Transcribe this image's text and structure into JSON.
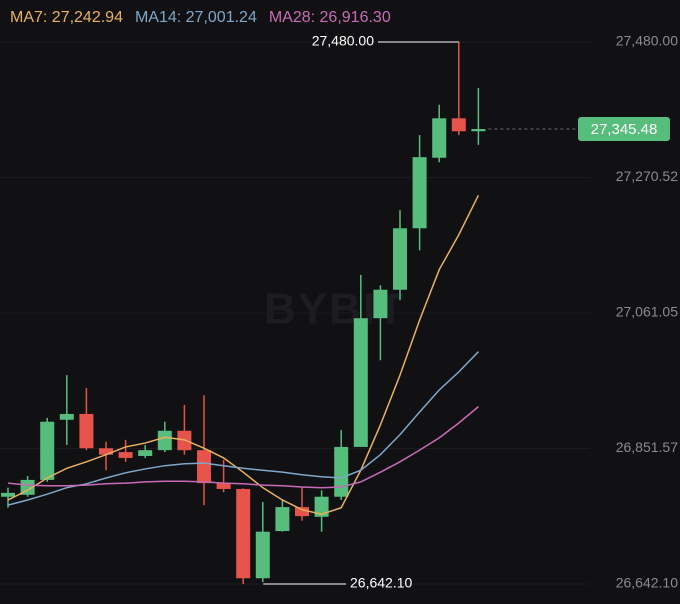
{
  "chart_data": {
    "type": "candlestick",
    "watermark": "BYBIT",
    "ylim": [
      26611.2,
      27544.9
    ],
    "yticks": [
      {
        "value": 27480.0,
        "label": "27,480.00"
      },
      {
        "value": 27270.52,
        "label": "27,270.52"
      },
      {
        "value": 27061.05,
        "label": "27,061.05"
      },
      {
        "value": 26851.57,
        "label": "26,851.57"
      },
      {
        "value": 26642.1,
        "label": "26,642.10"
      }
    ],
    "grid": true,
    "up_color": "#56bd7d",
    "down_color": "#e5534b",
    "open": [
      26777,
      26780,
      26803,
      26896,
      26905,
      26852,
      26846,
      26840,
      26849,
      26879,
      26849,
      26798,
      26789,
      26651,
      26724,
      26761,
      26746,
      26777,
      26854,
      27053,
      27097,
      27192,
      27301,
      27362,
      27342
    ],
    "high": [
      26791,
      26809,
      26899,
      26965,
      26945,
      26862,
      26865,
      26857,
      26893,
      26919,
      26934,
      26834,
      26790,
      26769,
      26772,
      26792,
      26787,
      26880,
      27120,
      27104,
      27220,
      27336,
      27383,
      27480.0,
      27409
    ],
    "low": [
      26760,
      26777,
      26800,
      26857,
      26849,
      26818,
      26831,
      26837,
      26846,
      26842,
      26764,
      26784,
      26642.1,
      26645,
      26723,
      26740,
      26723,
      26772,
      26854,
      26988,
      27081,
      27158,
      27294,
      27336,
      27321
    ],
    "close": [
      26783,
      26803,
      26893,
      26905,
      26852,
      26842,
      26837,
      26849,
      26879,
      26849,
      26798,
      26789,
      26651,
      26723,
      26761,
      26747,
      26777,
      26854,
      27053,
      27097,
      27192,
      27302,
      27362,
      27342,
      27345.48
    ],
    "series": [
      {
        "name": "MA7: 27,242.94",
        "color": "#e9b15d",
        "values": [
          26772,
          26787,
          26806,
          26821,
          26831,
          26842,
          26854,
          26860,
          26869,
          26865,
          26852,
          26837,
          26815,
          26791,
          26772,
          26757,
          26750,
          26760,
          26818,
          26888,
          26965,
          27050,
          27128,
          27182,
          27242.94
        ]
      },
      {
        "name": "MA14: 27,001.24",
        "color": "#7fa7c9",
        "values": [
          26764,
          26772,
          26781,
          26791,
          26797,
          26806,
          26814,
          26820,
          26825,
          26828,
          26829,
          26825,
          26821,
          26818,
          26815,
          26811,
          26808,
          26806,
          26818,
          26842,
          26873,
          26908,
          26942,
          26970,
          27001.24
        ]
      },
      {
        "name": "MA28: 26,916.30",
        "color": "#c86bb7",
        "values": [
          26798,
          26795,
          26794,
          26794,
          26795,
          26797,
          26798,
          26800,
          26801,
          26801,
          26800,
          26798,
          26797,
          26795,
          26794,
          26792,
          26791,
          26792,
          26800,
          26815,
          26831,
          26849,
          26868,
          26891,
          26916.3
        ]
      }
    ],
    "high_label": "27,480.00",
    "low_label": "26,642.10",
    "price_label": "27,345.48"
  }
}
